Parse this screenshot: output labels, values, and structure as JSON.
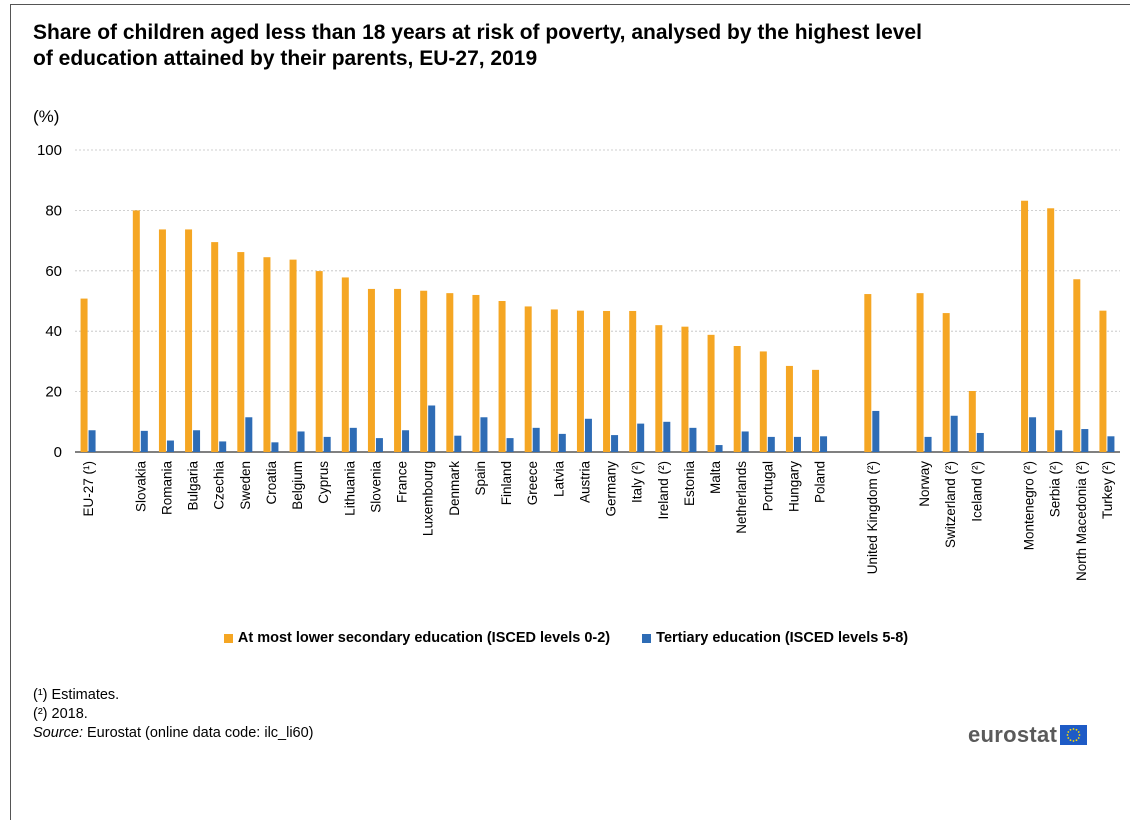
{
  "header": {
    "title": "Share of children aged less than 18 years at risk of poverty, analysed by the highest level of education attained by their parents, EU-27, 2019",
    "unit": "(%)"
  },
  "legend": {
    "items": [
      {
        "label": "At most lower secondary education (ISCED levels 0-2)",
        "color": "#f5a623"
      },
      {
        "label": "Tertiary education (ISCED levels 5-8)",
        "color": "#2e6cb5"
      }
    ]
  },
  "footnotes": {
    "note1": "(¹) Estimates.",
    "note2": "(²) 2018.",
    "source_label": "Source:",
    "source_text": " Eurostat (online data code: ilc_li60)"
  },
  "logo": {
    "text": "eurostat",
    "flag_color": "#1e5bc6"
  },
  "chart_data": {
    "type": "bar",
    "ylim": [
      0,
      100
    ],
    "yticks": [
      0,
      20,
      40,
      60,
      80,
      100
    ],
    "grid": true,
    "legend_position": "bottom",
    "groups": [
      [
        "EU-27 (¹)"
      ],
      [
        "Slovakia",
        "Romania",
        "Bulgaria",
        "Czechia",
        "Sweden",
        "Croatia",
        "Belgium",
        "Cyprus",
        "Lithuania",
        "Slovenia",
        "France",
        "Luxembourg",
        "Denmark",
        "Spain",
        "Finland",
        "Greece",
        "Latvia",
        "Austria",
        "Germany",
        "Italy (²)",
        "Ireland (²)",
        "Estonia",
        "Malta",
        "Netherlands",
        "Portugal",
        "Hungary",
        "Poland"
      ],
      [
        "United Kingdom (²)"
      ],
      [
        "Norway",
        "Switzerland (²)",
        "Iceland (²)"
      ],
      [
        "Montenegro (²)",
        "Serbia (²)",
        "North Macedonia (²)",
        "Turkey (²)"
      ]
    ],
    "categories": [
      "EU-27 (¹)",
      "Slovakia",
      "Romania",
      "Bulgaria",
      "Czechia",
      "Sweden",
      "Croatia",
      "Belgium",
      "Cyprus",
      "Lithuania",
      "Slovenia",
      "France",
      "Luxembourg",
      "Denmark",
      "Spain",
      "Finland",
      "Greece",
      "Latvia",
      "Austria",
      "Germany",
      "Italy (²)",
      "Ireland (²)",
      "Estonia",
      "Malta",
      "Netherlands",
      "Portugal",
      "Hungary",
      "Poland",
      "United Kingdom (²)",
      "Norway",
      "Switzerland (²)",
      "Iceland (²)",
      "Montenegro (²)",
      "Serbia (²)",
      "North Macedonia (²)",
      "Turkey (²)"
    ],
    "series": [
      {
        "name": "At most lower secondary education (ISCED levels 0-2)",
        "color": "#f5a623",
        "values": [
          50.8,
          80.0,
          73.7,
          73.7,
          69.5,
          66.2,
          64.5,
          63.7,
          59.9,
          57.8,
          54.0,
          54.0,
          53.4,
          52.6,
          52.0,
          50.0,
          48.2,
          47.2,
          46.8,
          46.7,
          46.7,
          42.0,
          41.5,
          38.8,
          35.1,
          33.3,
          28.5,
          27.2,
          52.3,
          52.6,
          46.0,
          20.2,
          83.2,
          80.7,
          57.2,
          46.8
        ]
      },
      {
        "name": "Tertiary education (ISCED levels 5-8)",
        "color": "#2e6cb5",
        "values": [
          7.2,
          7.0,
          3.8,
          7.2,
          3.5,
          11.5,
          3.2,
          6.8,
          5.0,
          8.0,
          4.6,
          7.2,
          15.4,
          5.4,
          11.5,
          4.6,
          8.0,
          6.0,
          11.0,
          5.6,
          9.4,
          10.0,
          8.0,
          2.3,
          6.8,
          5.0,
          5.0,
          5.2,
          13.6,
          5.0,
          12.0,
          6.3,
          11.5,
          7.2,
          7.6,
          5.2
        ]
      }
    ]
  }
}
